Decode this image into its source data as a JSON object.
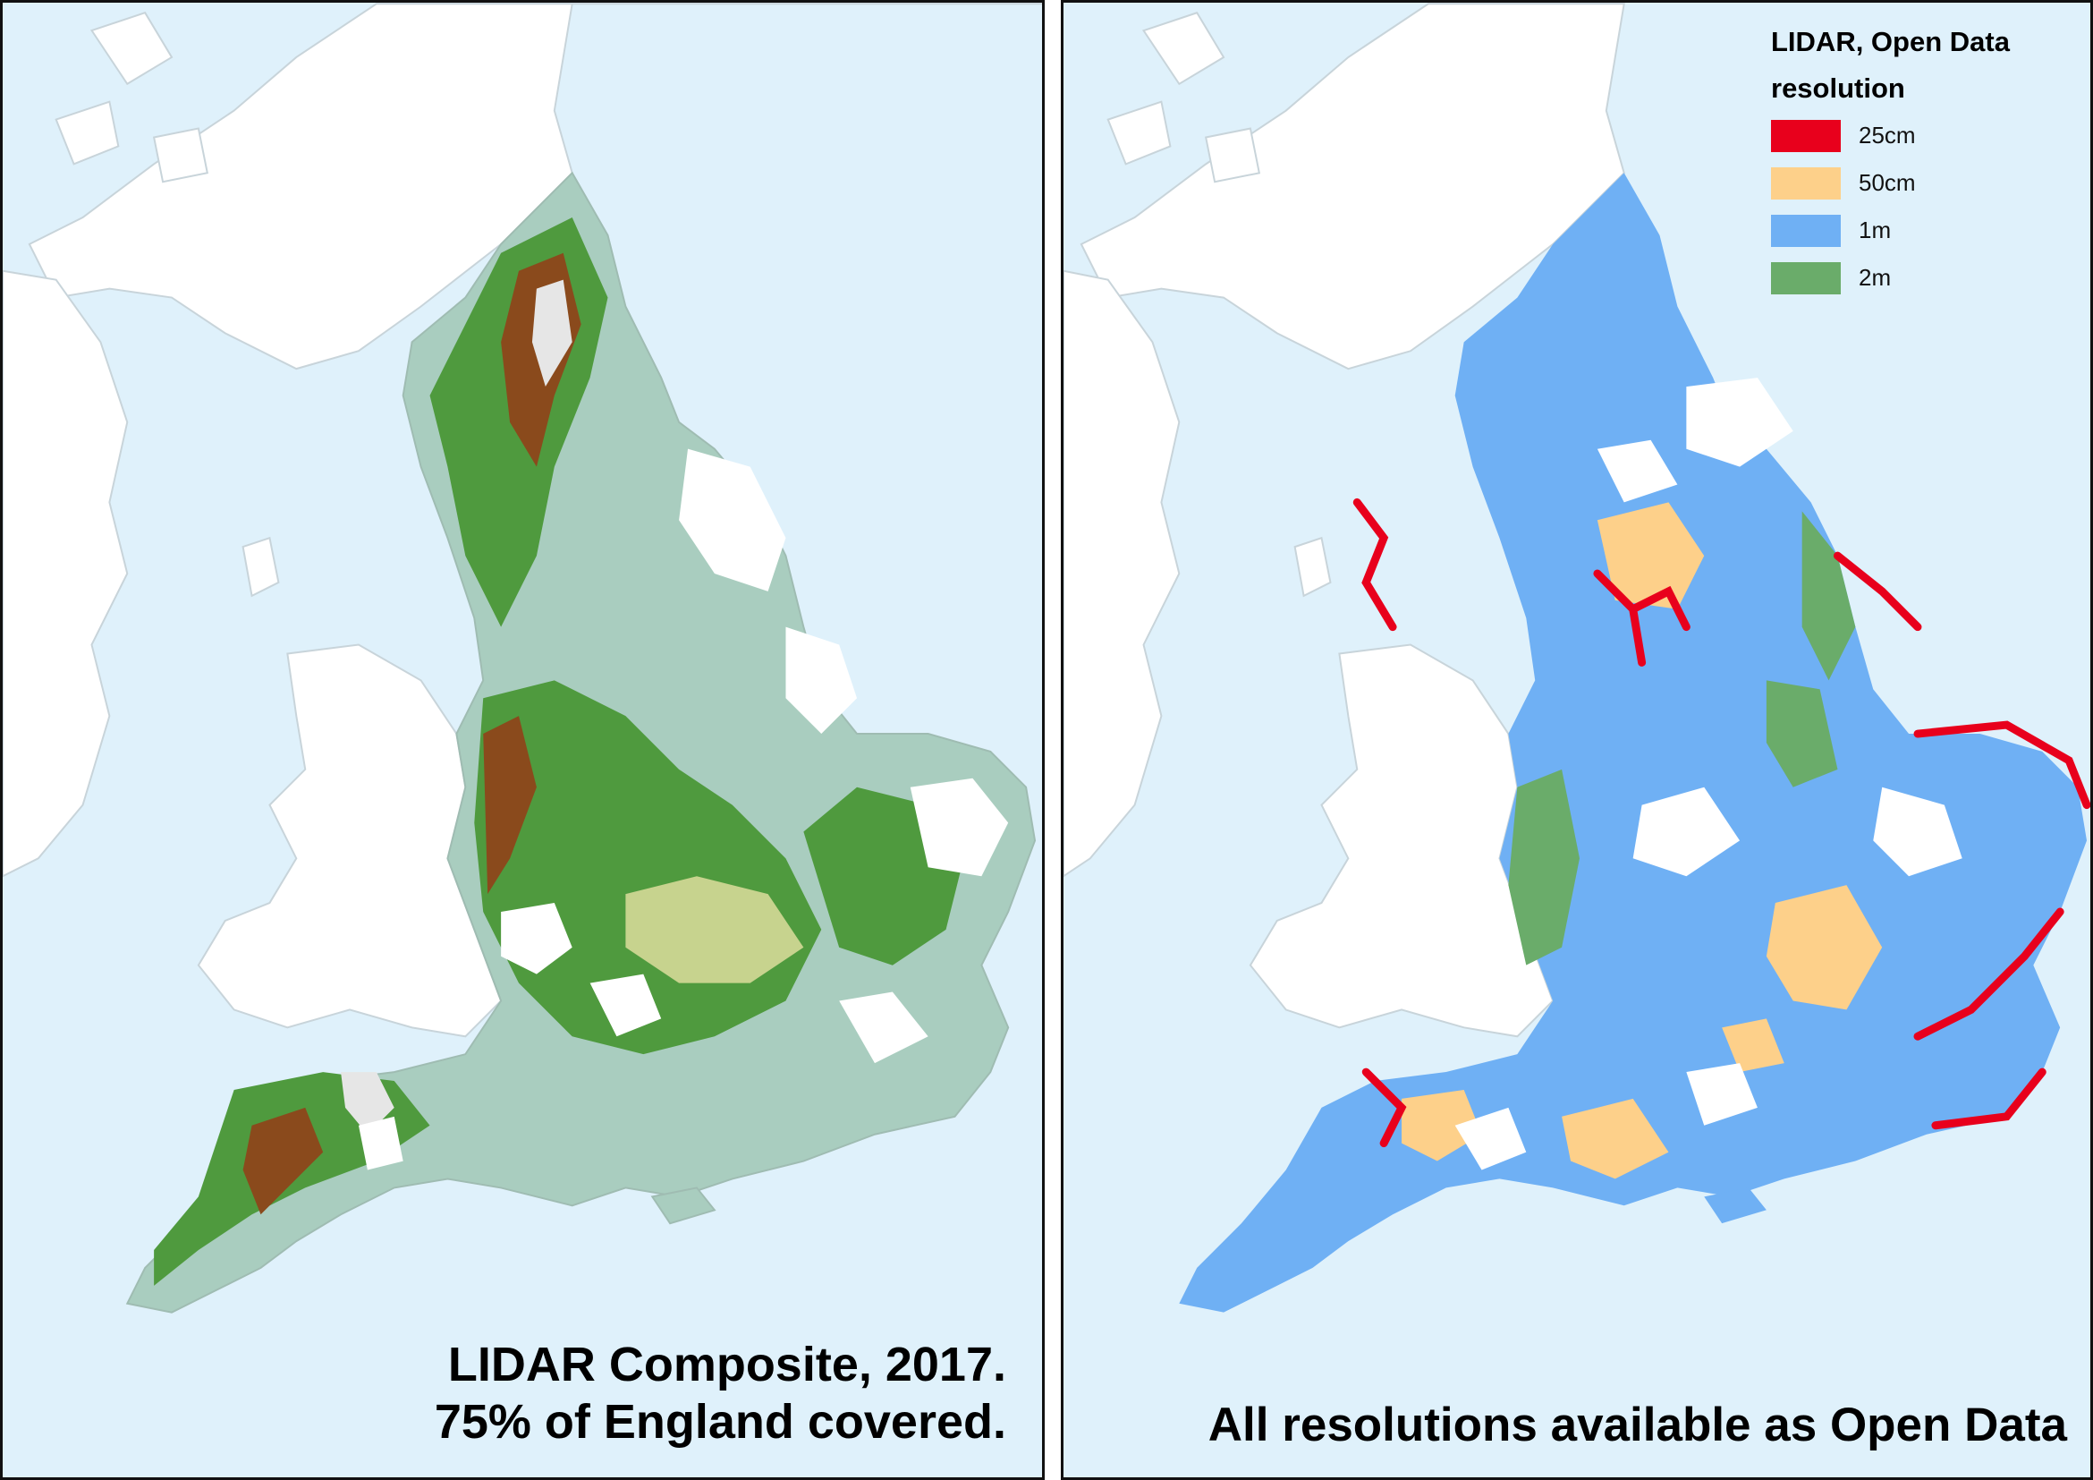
{
  "left_panel": {
    "caption_line1": "LIDAR Composite, 2017.",
    "caption_line2": "75% of England covered."
  },
  "right_panel": {
    "caption": "All resolutions available as Open Data",
    "legend": {
      "title_line1": "LIDAR, Open Data",
      "title_line2": "resolution",
      "items": [
        {
          "label": "25cm",
          "color": "#e8001c"
        },
        {
          "label": "50cm",
          "color": "#fdd08a"
        },
        {
          "label": "1m",
          "color": "#6fb0f4"
        },
        {
          "label": "2m",
          "color": "#6aac6a"
        }
      ]
    }
  },
  "colors": {
    "sea": "#dff1fb",
    "land": "#ffffff",
    "coverage_base": "#a9cdbf",
    "terrain_green": "#4f9a3e",
    "terrain_brown": "#8a4a1c",
    "terrain_snow": "#e6e6e6"
  }
}
